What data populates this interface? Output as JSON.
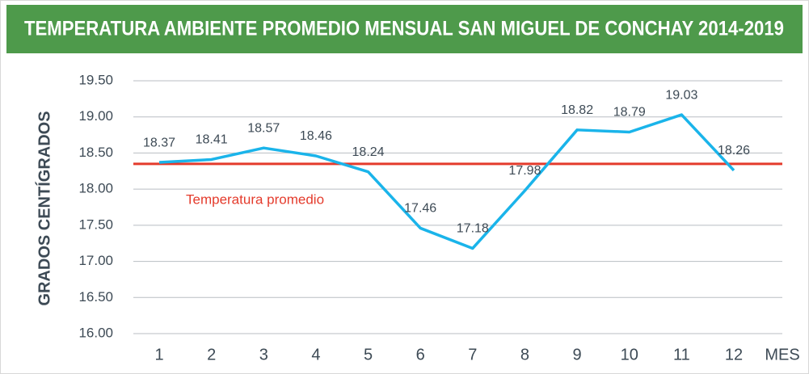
{
  "chart_data": {
    "type": "line",
    "title": "TEMPERATURA AMBIENTE PROMEDIO MENSUAL SAN MIGUEL DE CONCHAY 2014-2019",
    "y_label": "GRADOS CENTÍGRADOS",
    "x_label": "MES",
    "categories": [
      "1",
      "2",
      "3",
      "4",
      "5",
      "6",
      "7",
      "8",
      "9",
      "10",
      "11",
      "12"
    ],
    "series": [
      {
        "name": "Temperatura",
        "color": "#1ab4ea",
        "values": [
          18.37,
          18.41,
          18.57,
          18.46,
          18.24,
          17.46,
          17.18,
          17.98,
          18.82,
          18.79,
          19.03,
          18.26
        ]
      }
    ],
    "reference_line": {
      "label": "Temperatura promedio",
      "value": 18.35,
      "color": "#e43b2c"
    },
    "ylim": [
      16,
      19.5
    ],
    "yticks": [
      {
        "value": 16,
        "label": "16.00"
      },
      {
        "value": 16.5,
        "label": "16.50"
      },
      {
        "value": 17,
        "label": "17.00"
      },
      {
        "value": 17.5,
        "label": "17.50"
      },
      {
        "value": 18,
        "label": "18.00"
      },
      {
        "value": 18.5,
        "label": "18.50"
      },
      {
        "value": 19,
        "label": "19.00"
      },
      {
        "value": 19.5,
        "label": "19.50"
      }
    ],
    "grid": true
  }
}
